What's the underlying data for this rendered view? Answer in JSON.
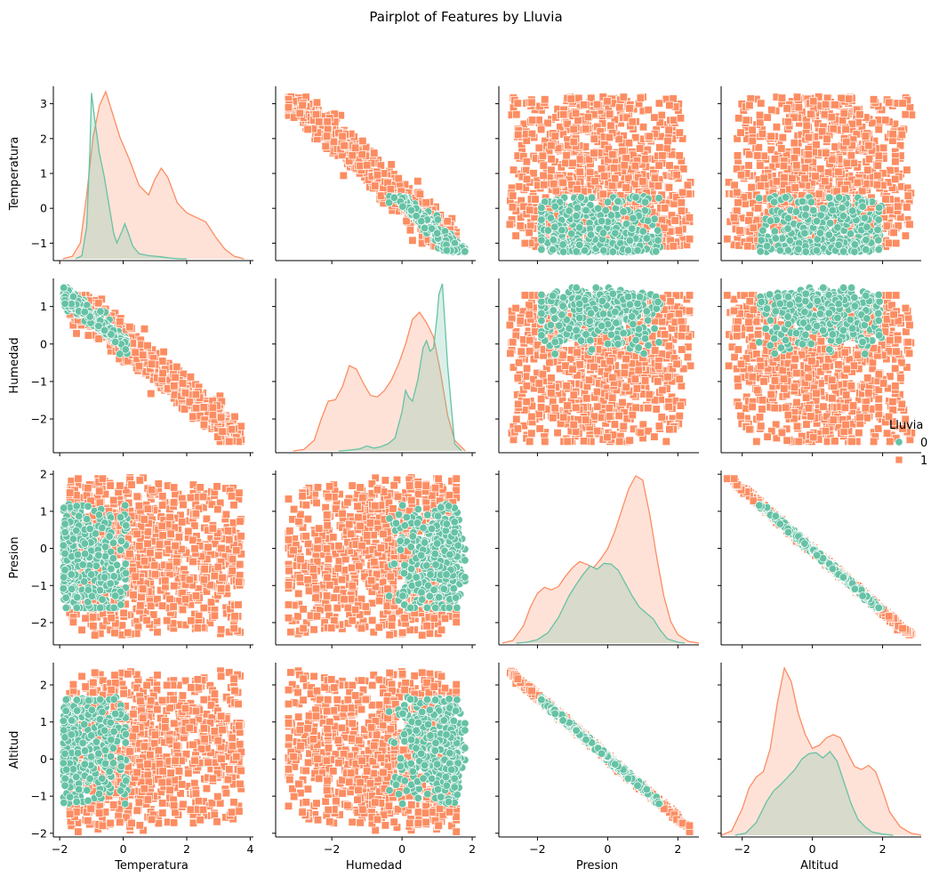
{
  "chart_data": {
    "type": "scatter",
    "title": "Pairplot of Features by Lluvia",
    "variables": [
      "Temperatura",
      "Humedad",
      "Presion",
      "Altitud"
    ],
    "hue": "Lluvia",
    "legend": {
      "title": "Lluvia",
      "placement": "right",
      "entries": [
        {
          "label": "0",
          "color": "#66c2a5",
          "marker": "circle"
        },
        {
          "label": "1",
          "color": "#fc8d62",
          "marker": "square"
        }
      ]
    },
    "axes_ranges": {
      "Temperatura": {
        "range": [
          -1.5,
          3.5
        ],
        "ticks": [
          -1,
          0,
          1,
          2,
          3
        ],
        "diag_x_range": [
          -2.2,
          4.1
        ],
        "diag_x_ticks": [
          -2,
          0,
          2,
          4
        ]
      },
      "Humedad": {
        "range": [
          -2.9,
          1.75
        ],
        "ticks": [
          -2,
          -1,
          0,
          1
        ],
        "diag_x_range": [
          -3.6,
          2.1
        ],
        "diag_x_ticks": [
          -2,
          0,
          2
        ]
      },
      "Presion": {
        "range": [
          -2.6,
          2.1
        ],
        "ticks": [
          -2,
          -1,
          0,
          1,
          2
        ],
        "diag_x_range": [
          -3.1,
          2.6
        ],
        "diag_x_ticks": [
          -2,
          0,
          2
        ]
      },
      "Altitud": {
        "range": [
          -2.1,
          2.6
        ],
        "ticks": [
          -2,
          -1,
          0,
          1,
          2
        ],
        "diag_x_range": [
          -2.6,
          3.1
        ],
        "diag_x_ticks": [
          -2,
          0,
          2
        ]
      }
    },
    "diagonal_kde": {
      "Temperatura": {
        "0": {
          "x": [
            -1.5,
            -1.3,
            -1.15,
            -1.05,
            -1.0,
            -0.9,
            -0.75,
            -0.6,
            -0.45,
            -0.3,
            -0.2,
            -0.05,
            0.05,
            0.15,
            0.3,
            0.5,
            0.8,
            1.2,
            1.5,
            1.8,
            2.0
          ],
          "y": [
            0.0,
            0.05,
            0.5,
            1.7,
            2.6,
            2.2,
            1.65,
            1.3,
            0.85,
            0.4,
            0.25,
            0.42,
            0.55,
            0.42,
            0.2,
            0.08,
            0.05,
            0.03,
            0.01,
            0.0,
            0.0
          ]
        },
        "1": {
          "x": [
            -1.9,
            -1.6,
            -1.35,
            -1.15,
            -0.95,
            -0.75,
            -0.55,
            -0.35,
            -0.1,
            0.2,
            0.5,
            0.8,
            1.0,
            1.2,
            1.4,
            1.7,
            2.0,
            2.3,
            2.6,
            2.9,
            3.2,
            3.5,
            3.8
          ],
          "y": [
            0.0,
            0.04,
            0.25,
            1.0,
            1.9,
            2.4,
            2.62,
            2.3,
            1.9,
            1.55,
            1.15,
            1.0,
            1.25,
            1.42,
            1.28,
            0.88,
            0.72,
            0.65,
            0.58,
            0.35,
            0.15,
            0.04,
            0.0
          ]
        }
      },
      "Humedad": {
        "0": {
          "x": [
            -1.8,
            -1.5,
            -1.2,
            -1.0,
            -0.8,
            -0.6,
            -0.4,
            -0.2,
            0.0,
            0.1,
            0.2,
            0.3,
            0.45,
            0.6,
            0.7,
            0.8,
            0.9,
            1.0,
            1.05,
            1.15,
            1.3,
            1.5,
            1.7
          ],
          "y": [
            0.0,
            0.01,
            0.03,
            0.07,
            0.04,
            0.06,
            0.1,
            0.18,
            0.55,
            0.85,
            0.75,
            0.7,
            1.0,
            1.45,
            1.55,
            1.4,
            1.45,
            1.9,
            2.2,
            2.35,
            1.2,
            0.1,
            0.0
          ]
        },
        "1": {
          "x": [
            -3.1,
            -2.8,
            -2.5,
            -2.3,
            -2.1,
            -1.9,
            -1.7,
            -1.5,
            -1.3,
            -1.1,
            -0.9,
            -0.7,
            -0.5,
            -0.3,
            -0.1,
            0.1,
            0.3,
            0.5,
            0.7,
            0.9,
            1.1,
            1.3,
            1.5,
            1.8
          ],
          "y": [
            0.0,
            0.02,
            0.15,
            0.45,
            0.7,
            0.72,
            0.9,
            1.2,
            1.15,
            0.95,
            0.78,
            0.76,
            0.85,
            1.0,
            1.22,
            1.5,
            1.85,
            1.95,
            1.8,
            1.6,
            1.1,
            0.5,
            0.15,
            0.0
          ]
        }
      },
      "Presion": {
        "0": {
          "x": [
            -2.6,
            -2.3,
            -2.0,
            -1.7,
            -1.4,
            -1.1,
            -0.9,
            -0.7,
            -0.5,
            -0.3,
            -0.1,
            0.1,
            0.3,
            0.5,
            0.7,
            0.9,
            1.1,
            1.3,
            1.5,
            1.7,
            2.0,
            2.2
          ],
          "y": [
            0.0,
            0.01,
            0.04,
            0.12,
            0.3,
            0.55,
            0.68,
            0.8,
            0.9,
            0.86,
            0.93,
            0.92,
            0.85,
            0.7,
            0.55,
            0.42,
            0.35,
            0.28,
            0.15,
            0.05,
            0.01,
            0.0
          ]
        },
        "1": {
          "x": [
            -3.0,
            -2.7,
            -2.4,
            -2.2,
            -2.0,
            -1.8,
            -1.6,
            -1.4,
            -1.2,
            -1.0,
            -0.8,
            -0.6,
            -0.4,
            -0.2,
            0.0,
            0.2,
            0.4,
            0.6,
            0.8,
            1.0,
            1.2,
            1.4,
            1.6,
            1.8,
            2.0,
            2.3,
            2.6
          ],
          "y": [
            0.0,
            0.03,
            0.2,
            0.42,
            0.58,
            0.65,
            0.62,
            0.66,
            0.78,
            0.88,
            0.95,
            0.92,
            0.88,
            0.98,
            1.1,
            1.3,
            1.55,
            1.8,
            1.95,
            1.9,
            1.5,
            1.0,
            0.55,
            0.25,
            0.1,
            0.02,
            0.0
          ]
        }
      },
      "Altitud": {
        "0": {
          "x": [
            -2.2,
            -1.9,
            -1.6,
            -1.3,
            -1.1,
            -0.9,
            -0.7,
            -0.5,
            -0.3,
            -0.1,
            0.1,
            0.3,
            0.5,
            0.7,
            0.9,
            1.1,
            1.3,
            1.5,
            1.7,
            2.0,
            2.3
          ],
          "y": [
            0.0,
            0.02,
            0.12,
            0.32,
            0.42,
            0.48,
            0.55,
            0.62,
            0.72,
            0.77,
            0.78,
            0.73,
            0.79,
            0.7,
            0.5,
            0.3,
            0.15,
            0.08,
            0.03,
            0.01,
            0.0
          ]
        },
        "1": {
          "x": [
            -2.6,
            -2.3,
            -2.0,
            -1.8,
            -1.6,
            -1.4,
            -1.2,
            -1.0,
            -0.8,
            -0.6,
            -0.4,
            -0.2,
            0.0,
            0.2,
            0.4,
            0.6,
            0.8,
            1.0,
            1.2,
            1.4,
            1.6,
            1.8,
            2.0,
            2.2,
            2.5,
            2.8,
            3.1
          ],
          "y": [
            0.0,
            0.04,
            0.25,
            0.45,
            0.55,
            0.6,
            0.82,
            1.25,
            1.58,
            1.45,
            1.15,
            0.95,
            0.82,
            0.85,
            0.92,
            0.95,
            0.92,
            0.78,
            0.65,
            0.62,
            0.66,
            0.6,
            0.42,
            0.22,
            0.08,
            0.02,
            0.0
          ]
        }
      }
    },
    "scatter_clusters": {
      "Temperatura_vs_Humedad": {
        "relation": "negative linear",
        "x_range": [
          -1.3,
          3.3
        ],
        "y_range": [
          -2.6,
          1.5
        ]
      },
      "Presion_vs_Altitud": {
        "relation": "negative linear",
        "x_range": [
          -2.5,
          2.0
        ],
        "y_range": [
          -2.0,
          2.5
        ]
      }
    }
  }
}
